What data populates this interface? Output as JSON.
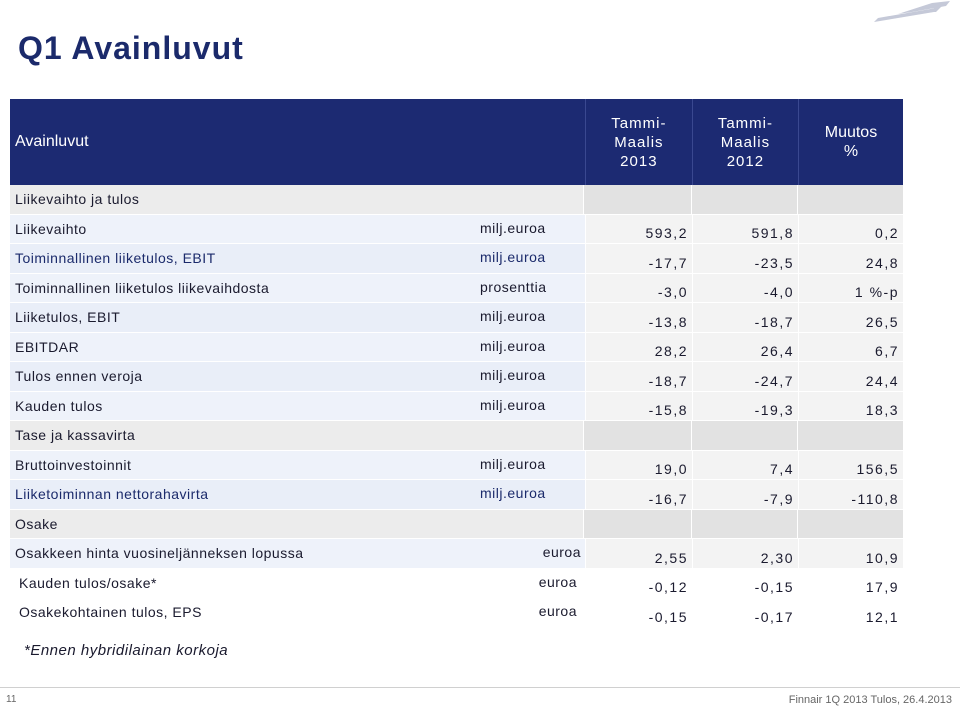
{
  "title": "Q1 Avainluvut",
  "header": {
    "label": "Avainluvut",
    "col1": "Tammi-\nMaalis\n2013",
    "col2": "Tammi-\nMaalis\n2012",
    "col3": "Muutos\n%"
  },
  "rows": [
    {
      "name": "Liikevaihto ja tulos",
      "unit": "",
      "v1": "",
      "v2": "",
      "v3": ""
    },
    {
      "name": "Liikevaihto",
      "unit": "milj.euroa",
      "v1": "593,2",
      "v2": "591,8",
      "v3": "0,2"
    },
    {
      "name": "Toiminnallinen liiketulos, EBIT",
      "unit": "milj.euroa",
      "v1": "-17,7",
      "v2": "-23,5",
      "v3": "24,8"
    },
    {
      "name": "Toiminnallinen liiketulos liikevaihdosta",
      "unit": "prosenttia",
      "v1": "-3,0",
      "v2": "-4,0",
      "v3": "1 %-p"
    },
    {
      "name": "Liiketulos, EBIT",
      "unit": "milj.euroa",
      "v1": "-13,8",
      "v2": "-18,7",
      "v3": "26,5"
    },
    {
      "name": "EBITDAR",
      "unit": "milj.euroa",
      "v1": "28,2",
      "v2": "26,4",
      "v3": "6,7"
    },
    {
      "name": "Tulos ennen veroja",
      "unit": "milj.euroa",
      "v1": "-18,7",
      "v2": "-24,7",
      "v3": "24,4"
    },
    {
      "name": "Kauden tulos",
      "unit": "milj.euroa",
      "v1": "-15,8",
      "v2": "-19,3",
      "v3": "18,3"
    },
    {
      "name": "Tase ja kassavirta",
      "unit": "",
      "v1": "",
      "v2": "",
      "v3": ""
    },
    {
      "name": "Bruttoinvestoinnit",
      "unit": "milj.euroa",
      "v1": "19,0",
      "v2": "7,4",
      "v3": "156,5"
    },
    {
      "name": "Liiketoiminnan nettorahavirta",
      "unit": "milj.euroa",
      "v1": "-16,7",
      "v2": "-7,9",
      "v3": "-110,8"
    },
    {
      "name": "Osake",
      "unit": "",
      "v1": "",
      "v2": "",
      "v3": ""
    },
    {
      "name": "Osakkeen hinta vuosineljänneksen lopussa",
      "unit": "euroa",
      "v1": "2,55",
      "v2": "2,30",
      "v3": "10,9"
    },
    {
      "name": "Kauden tulos/osake*",
      "unit": "euroa",
      "v1": "-0,12",
      "v2": "-0,15",
      "v3": "17,9"
    },
    {
      "name": "Osakekohtainen tulos, EPS",
      "unit": "euroa",
      "v1": "-0,15",
      "v2": "-0,17",
      "v3": "12,1"
    }
  ],
  "footnote": "*Ennen hybridilainan korkoja",
  "page_number": "11",
  "footer": "Finnair 1Q 2013 Tulos, 26.4.2013",
  "colors": {
    "header_bg": "#1c2a72",
    "title": "#1b2a6b",
    "row_bg": "#ececec"
  }
}
